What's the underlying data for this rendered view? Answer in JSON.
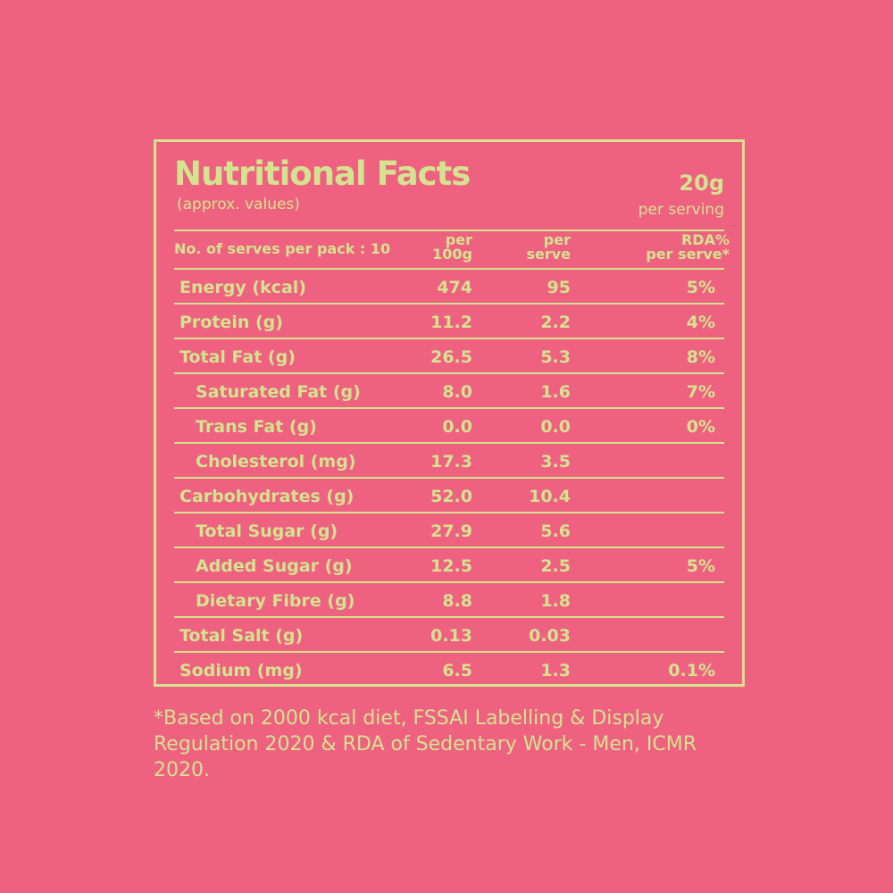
{
  "header": {
    "title": "Nutritional Facts",
    "subtitle": "(approx. values)",
    "serving_size": "20g",
    "serving_label": "per serving"
  },
  "columns": {
    "serves": "No. of serves per pack : 10",
    "per_100g_l1": "per",
    "per_100g_l2": "100g",
    "per_serve_l1": "per",
    "per_serve_l2": "serve",
    "rda_l1": "RDA%",
    "rda_l2": "per serve*"
  },
  "rows": [
    {
      "label": "Energy (kcal)",
      "per100": "474",
      "perserve": "95",
      "rda": "5%",
      "indent": false
    },
    {
      "label": "Protein (g)",
      "per100": "11.2",
      "perserve": "2.2",
      "rda": "4%",
      "indent": false
    },
    {
      "label": "Total Fat (g)",
      "per100": "26.5",
      "perserve": "5.3",
      "rda": "8%",
      "indent": false
    },
    {
      "label": "Saturated Fat (g)",
      "per100": "8.0",
      "perserve": "1.6",
      "rda": "7%",
      "indent": true
    },
    {
      "label": "Trans Fat (g)",
      "per100": "0.0",
      "perserve": "0.0",
      "rda": "0%",
      "indent": true
    },
    {
      "label": "Cholesterol (mg)",
      "per100": "17.3",
      "perserve": "3.5",
      "rda": "",
      "indent": true
    },
    {
      "label": "Carbohydrates (g)",
      "per100": "52.0",
      "perserve": "10.4",
      "rda": "",
      "indent": false
    },
    {
      "label": "Total Sugar (g)",
      "per100": "27.9",
      "perserve": "5.6",
      "rda": "",
      "indent": true
    },
    {
      "label": "Added Sugar (g)",
      "per100": "12.5",
      "perserve": "2.5",
      "rda": "5%",
      "indent": true
    },
    {
      "label": "Dietary Fibre (g)",
      "per100": "8.8",
      "perserve": "1.8",
      "rda": "",
      "indent": true
    },
    {
      "label": "Total Salt (g)",
      "per100": "0.13",
      "perserve": "0.03",
      "rda": "",
      "indent": false
    },
    {
      "label": "Sodium (mg)",
      "per100": "6.5",
      "perserve": "1.3",
      "rda": "0.1%",
      "indent": false
    }
  ],
  "footnote": "*Based on 2000 kcal diet, FSSAI Labelling & Display Regulation 2020 & RDA of Sedentary Work - Men, ICMR 2020.",
  "colors": {
    "background": "#ef6180",
    "foreground": "#d4e38f"
  }
}
